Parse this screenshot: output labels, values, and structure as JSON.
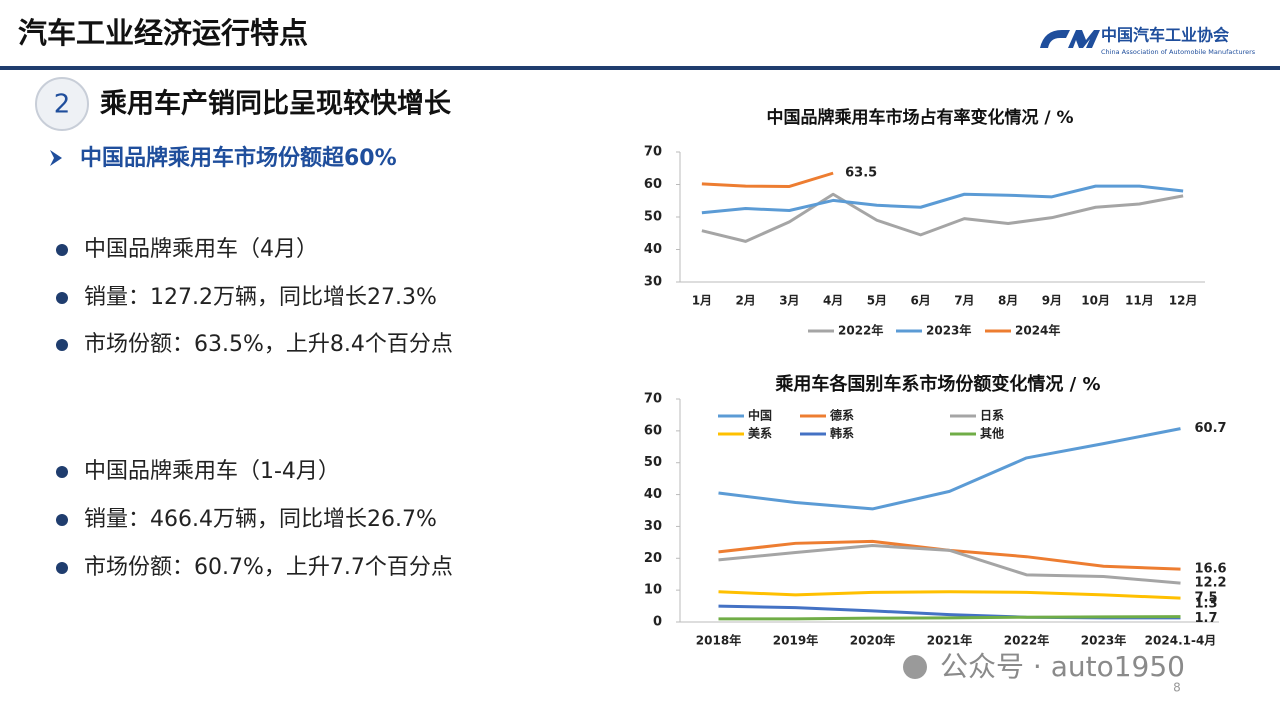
{
  "header": {
    "title": "汽车工业经济运行特点",
    "logo_name": "中国汽车工业协会",
    "logo_subtitle": "China Association of Automobile Manufacturers"
  },
  "section": {
    "number": "2",
    "title": "乘用车产销同比呈现较快增长",
    "highlight": "中国品牌乘用车市场份额超60%"
  },
  "bullets": [
    "中国品牌乘用车（4月）",
    "销量：127.2万辆，同比增长27.3%",
    "市场份额：63.5%，上升8.4个百分点",
    "中国品牌乘用车（1-4月）",
    "销量：466.4万辆，同比增长26.7%",
    "市场份额：60.7%，上升7.7个百分点"
  ],
  "chart_data": [
    {
      "type": "line",
      "title": "中国品牌乘用车市场占有率变化情况 / %",
      "categories": [
        "1月",
        "2月",
        "3月",
        "4月",
        "5月",
        "6月",
        "7月",
        "8月",
        "9月",
        "10月",
        "11月",
        "12月"
      ],
      "ylim": [
        30,
        70
      ],
      "yticks": [
        30,
        40,
        50,
        60,
        70
      ],
      "legend": "bottom",
      "series": [
        {
          "name": "2022年",
          "color": "#a5a5a5",
          "values": [
            45.8,
            42.5,
            48.5,
            57,
            49,
            44.5,
            49.5,
            48,
            49.8,
            53,
            54,
            56.5
          ]
        },
        {
          "name": "2023年",
          "color": "#5b9bd5",
          "values": [
            51.3,
            52.6,
            52,
            55.1,
            53.6,
            53,
            57,
            56.7,
            56.2,
            59.5,
            59.5,
            58
          ]
        },
        {
          "name": "2024年",
          "color": "#ed7d31",
          "values": [
            60.2,
            59.5,
            59.4,
            63.5,
            null,
            null,
            null,
            null,
            null,
            null,
            null,
            null
          ]
        }
      ]
    },
    {
      "type": "line",
      "title": "乘用车各国别车系市场份额变化情况 / %",
      "categories": [
        "2018年",
        "2019年",
        "2020年",
        "2021年",
        "2022年",
        "2023年",
        "2024.1-4月"
      ],
      "ylim": [
        0,
        70
      ],
      "yticks": [
        0,
        10,
        20,
        30,
        40,
        50,
        60,
        70
      ],
      "legend": "top-left",
      "series": [
        {
          "name": "中国",
          "color": "#5b9bd5",
          "values": [
            40.5,
            37.5,
            35.5,
            41,
            51.5,
            56,
            60.7
          ]
        },
        {
          "name": "德系",
          "color": "#ed7d31",
          "values": [
            22,
            24.7,
            25.3,
            22.5,
            20.5,
            17.5,
            16.6
          ]
        },
        {
          "name": "日系",
          "color": "#a5a5a5",
          "values": [
            19.5,
            21.8,
            24,
            22.5,
            14.8,
            14.3,
            12.2
          ]
        },
        {
          "name": "美系",
          "color": "#ffc000",
          "values": [
            9.5,
            8.5,
            9.3,
            9.5,
            9.3,
            8.5,
            7.5
          ]
        },
        {
          "name": "韩系",
          "color": "#4472c4",
          "values": [
            5,
            4.5,
            3.5,
            2.3,
            1.5,
            1.3,
            1.3
          ]
        },
        {
          "name": "其他",
          "color": "#70ad47",
          "values": [
            1,
            1,
            1.2,
            1.3,
            1.5,
            1.6,
            1.7
          ]
        }
      ]
    }
  ],
  "footer": {
    "account": "公众号 · auto1950",
    "page": "8"
  }
}
